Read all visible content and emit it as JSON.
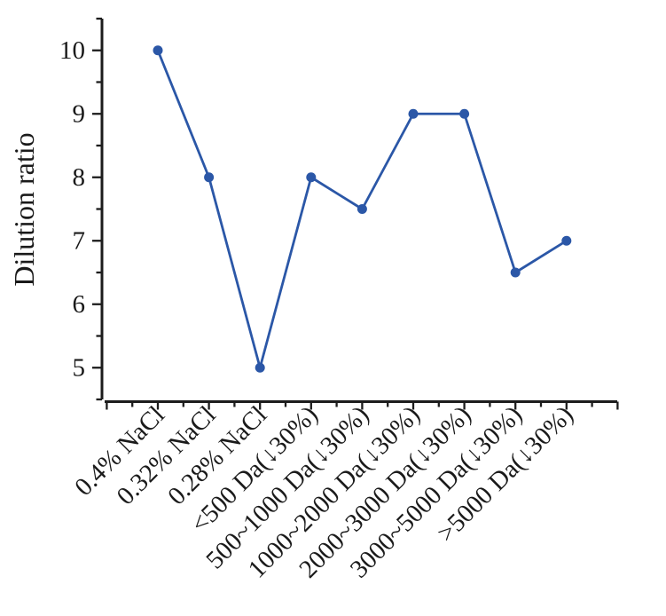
{
  "figure": {
    "background": "#ffffff"
  },
  "chart_data": {
    "type": "line",
    "title": "",
    "xlabel": "",
    "ylabel": "Dilution ratio",
    "categories": [
      "0.4% NaCl",
      "0.32% NaCl",
      "0.28% NaCl",
      "<500 Da(↓30%)",
      "500~1000 Da(↓30%)",
      "1000~2000 Da(↓30%)",
      "2000~3000 Da(↓30%)",
      "3000~5000 Da(↓30%)",
      ">5000 Da(↓30%)"
    ],
    "series": [
      {
        "name": "Dilution ratio",
        "values": [
          10,
          8,
          5,
          8,
          7.5,
          9,
          9,
          6.5,
          7
        ]
      }
    ],
    "ylim": [
      4.5,
      10.5
    ],
    "yticks": [
      5,
      6,
      7,
      8,
      9,
      10
    ],
    "y_minor_step": 0.5,
    "grid": false,
    "legend": false,
    "marker": "circle",
    "line_color": "#2b57a7",
    "marker_color": "#2b57a7",
    "axis_color": "#1c1c1c",
    "text_color": "#1a1a1a"
  }
}
